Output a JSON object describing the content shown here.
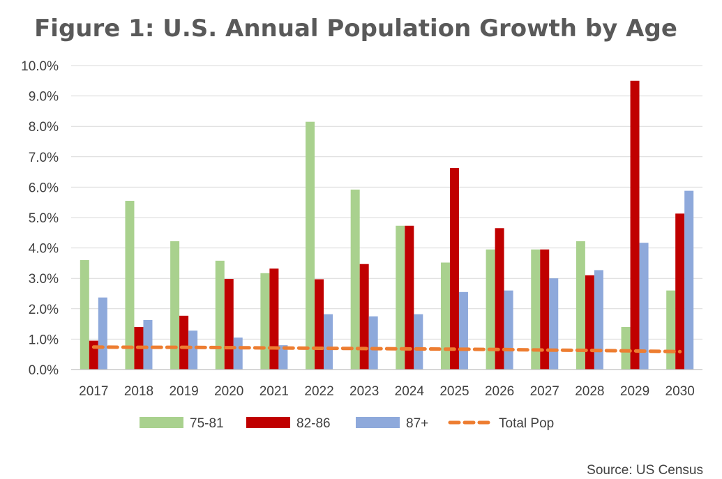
{
  "chart_data": {
    "type": "bar",
    "title": "Figure 1: U.S. Annual Population Growth by Age",
    "xlabel": "",
    "ylabel": "",
    "ylim": [
      0,
      10
    ],
    "ytick_values": [
      0,
      1,
      2,
      3,
      4,
      5,
      6,
      7,
      8,
      9,
      10
    ],
    "ytick_labels": [
      "0.0%",
      "1.0%",
      "2.0%",
      "3.0%",
      "4.0%",
      "5.0%",
      "6.0%",
      "7.0%",
      "8.0%",
      "9.0%",
      "10.0%"
    ],
    "grid": true,
    "legend_position": "bottom",
    "categories": [
      "2017",
      "2018",
      "2019",
      "2020",
      "2021",
      "2022",
      "2023",
      "2024",
      "2025",
      "2026",
      "2027",
      "2028",
      "2029",
      "2030"
    ],
    "series": [
      {
        "name": "75-81",
        "kind": "bar",
        "color": "#A9D18E",
        "values": [
          3.6,
          5.55,
          4.22,
          3.58,
          3.17,
          8.15,
          5.92,
          4.73,
          3.52,
          3.95,
          3.95,
          4.22,
          1.4,
          2.6
        ]
      },
      {
        "name": "82-86",
        "kind": "bar",
        "color": "#C00000",
        "values": [
          0.95,
          1.4,
          1.77,
          2.98,
          3.32,
          2.97,
          3.47,
          4.73,
          6.63,
          4.65,
          3.95,
          3.1,
          9.5,
          5.13
        ]
      },
      {
        "name": "87+",
        "kind": "bar",
        "color": "#8EA9DB",
        "values": [
          2.37,
          1.63,
          1.28,
          1.05,
          0.8,
          1.82,
          1.75,
          1.82,
          2.55,
          2.6,
          3.0,
          3.27,
          4.17,
          5.88
        ]
      },
      {
        "name": "Total Pop",
        "kind": "line",
        "style": "dashed",
        "color": "#ED7D31",
        "values": [
          0.74,
          0.73,
          0.73,
          0.72,
          0.71,
          0.7,
          0.69,
          0.68,
          0.67,
          0.66,
          0.64,
          0.63,
          0.61,
          0.59
        ]
      }
    ],
    "source": "Source: US Census"
  }
}
